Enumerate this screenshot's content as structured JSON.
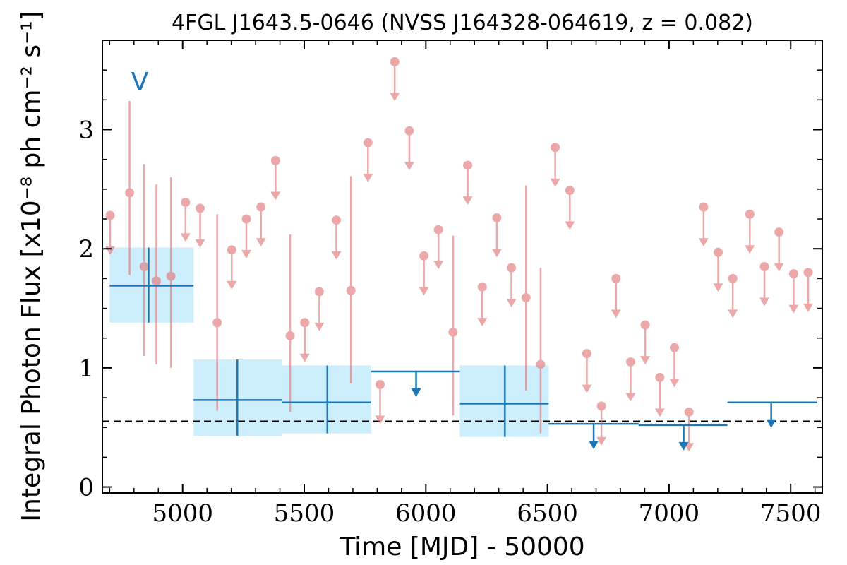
{
  "chart_data": {
    "type": "scatter",
    "title": "4FGL J1643.5-0646 (NVSS J164328-064619, z = 0.082)",
    "xlabel": "Time [MJD] - 50000",
    "ylabel": "Integral Photon Flux [x10⁻⁸ ph cm⁻² s⁻¹]",
    "xlim": [
      4670,
      7630
    ],
    "ylim": [
      -0.05,
      3.75
    ],
    "xticks": [
      5000,
      5500,
      6000,
      6500,
      7000,
      7500
    ],
    "yticks": [
      0,
      1,
      2,
      3
    ],
    "annotation": "V",
    "reference_line": 0.55,
    "colors": {
      "fine": "#e07070",
      "coarse": "#1f77b4",
      "coarse_fill": "#cdeefc",
      "reference": "#000000"
    },
    "fine_detections": [
      {
        "x": 4782,
        "y": 2.47,
        "lo": 1.78,
        "hi": 3.24
      },
      {
        "x": 4842,
        "y": 1.85,
        "lo": 1.1,
        "hi": 2.71
      },
      {
        "x": 4892,
        "y": 1.73,
        "lo": 1.03,
        "hi": 2.54
      },
      {
        "x": 4952,
        "y": 1.77,
        "lo": 1.0,
        "hi": 2.6
      },
      {
        "x": 5142,
        "y": 1.38,
        "lo": 0.64,
        "hi": 2.29
      },
      {
        "x": 5442,
        "y": 1.27,
        "lo": 0.63,
        "hi": 2.12
      },
      {
        "x": 5692,
        "y": 1.65,
        "lo": 0.87,
        "hi": 2.61
      },
      {
        "x": 6112,
        "y": 1.3,
        "lo": 0.6,
        "hi": 2.11
      },
      {
        "x": 6412,
        "y": 1.59,
        "lo": 0.81,
        "hi": 2.53
      },
      {
        "x": 6472,
        "y": 1.03,
        "lo": 0.45,
        "hi": 1.84
      }
    ],
    "fine_upper_limits": [
      {
        "x": 4702,
        "y": 2.28
      },
      {
        "x": 5012,
        "y": 2.39
      },
      {
        "x": 5072,
        "y": 2.34
      },
      {
        "x": 5202,
        "y": 1.99
      },
      {
        "x": 5262,
        "y": 2.25
      },
      {
        "x": 5322,
        "y": 2.35
      },
      {
        "x": 5382,
        "y": 2.74
      },
      {
        "x": 5502,
        "y": 1.38
      },
      {
        "x": 5562,
        "y": 1.64
      },
      {
        "x": 5632,
        "y": 2.24
      },
      {
        "x": 5762,
        "y": 2.89
      },
      {
        "x": 5812,
        "y": 0.86
      },
      {
        "x": 5872,
        "y": 3.57
      },
      {
        "x": 5932,
        "y": 2.99
      },
      {
        "x": 5992,
        "y": 1.94
      },
      {
        "x": 6052,
        "y": 2.16
      },
      {
        "x": 6172,
        "y": 2.7
      },
      {
        "x": 6232,
        "y": 1.68
      },
      {
        "x": 6292,
        "y": 2.26
      },
      {
        "x": 6352,
        "y": 1.84
      },
      {
        "x": 6532,
        "y": 2.85
      },
      {
        "x": 6592,
        "y": 2.49
      },
      {
        "x": 6662,
        "y": 1.12
      },
      {
        "x": 6722,
        "y": 0.68
      },
      {
        "x": 6782,
        "y": 1.75
      },
      {
        "x": 6842,
        "y": 1.05
      },
      {
        "x": 6902,
        "y": 1.36
      },
      {
        "x": 6962,
        "y": 0.92
      },
      {
        "x": 7022,
        "y": 1.17
      },
      {
        "x": 7082,
        "y": 0.63
      },
      {
        "x": 7142,
        "y": 2.35
      },
      {
        "x": 7202,
        "y": 1.97
      },
      {
        "x": 7262,
        "y": 1.75
      },
      {
        "x": 7332,
        "y": 2.29
      },
      {
        "x": 7392,
        "y": 1.85
      },
      {
        "x": 7452,
        "y": 2.14
      },
      {
        "x": 7512,
        "y": 1.79
      },
      {
        "x": 7572,
        "y": 1.8
      }
    ],
    "coarse_detections": [
      {
        "x0": 4700,
        "x1": 5045,
        "x": 4860,
        "y": 1.69,
        "lo": 1.38,
        "hi": 2.01
      },
      {
        "x0": 5045,
        "x1": 5410,
        "x": 5225,
        "y": 0.73,
        "lo": 0.43,
        "hi": 1.07
      },
      {
        "x0": 5410,
        "x1": 5775,
        "x": 5595,
        "y": 0.71,
        "lo": 0.45,
        "hi": 1.02
      },
      {
        "x0": 6140,
        "x1": 6505,
        "x": 6325,
        "y": 0.7,
        "lo": 0.42,
        "hi": 1.02
      }
    ],
    "coarse_upper_limits": [
      {
        "x0": 5775,
        "x1": 6140,
        "x": 5960,
        "y": 0.97
      },
      {
        "x0": 6505,
        "x1": 6875,
        "x": 6690,
        "y": 0.53
      },
      {
        "x0": 6875,
        "x1": 7240,
        "x": 7060,
        "y": 0.52
      },
      {
        "x0": 7240,
        "x1": 7610,
        "x": 7420,
        "y": 0.71
      }
    ]
  }
}
